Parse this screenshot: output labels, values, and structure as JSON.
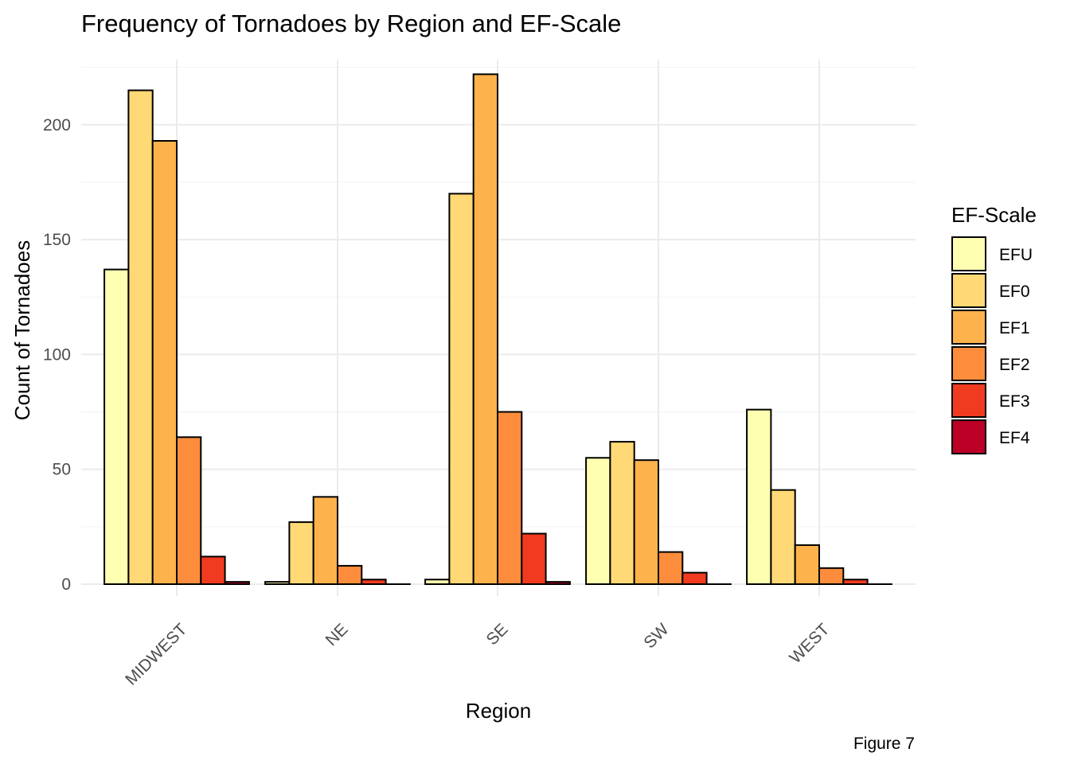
{
  "chart_data": {
    "type": "bar",
    "title": "Frequency of Tornadoes by Region and EF-Scale",
    "xlabel": "Region",
    "ylabel": "Count of Tornadoes",
    "caption": "Figure 7",
    "categories": [
      "MIDWEST",
      "NE",
      "SE",
      "SW",
      "WEST"
    ],
    "ylim": [
      0,
      225
    ],
    "yticks": [
      0,
      50,
      100,
      150,
      200
    ],
    "grid": true,
    "legend": {
      "title": "EF-Scale",
      "placement": "right"
    },
    "series": [
      {
        "name": "EFU",
        "color": "#FFFFB2",
        "values": [
          137,
          1,
          2,
          55,
          76
        ]
      },
      {
        "name": "EF0",
        "color": "#FED976",
        "values": [
          215,
          27,
          170,
          62,
          41
        ]
      },
      {
        "name": "EF1",
        "color": "#FEB24C",
        "values": [
          193,
          38,
          222,
          54,
          17
        ]
      },
      {
        "name": "EF2",
        "color": "#FD8D3C",
        "values": [
          64,
          8,
          75,
          14,
          7
        ]
      },
      {
        "name": "EF3",
        "color": "#F03B20",
        "values": [
          12,
          2,
          22,
          5,
          2
        ]
      },
      {
        "name": "EF4",
        "color": "#BD0026",
        "values": [
          1,
          0,
          1,
          0,
          0
        ]
      }
    ]
  }
}
